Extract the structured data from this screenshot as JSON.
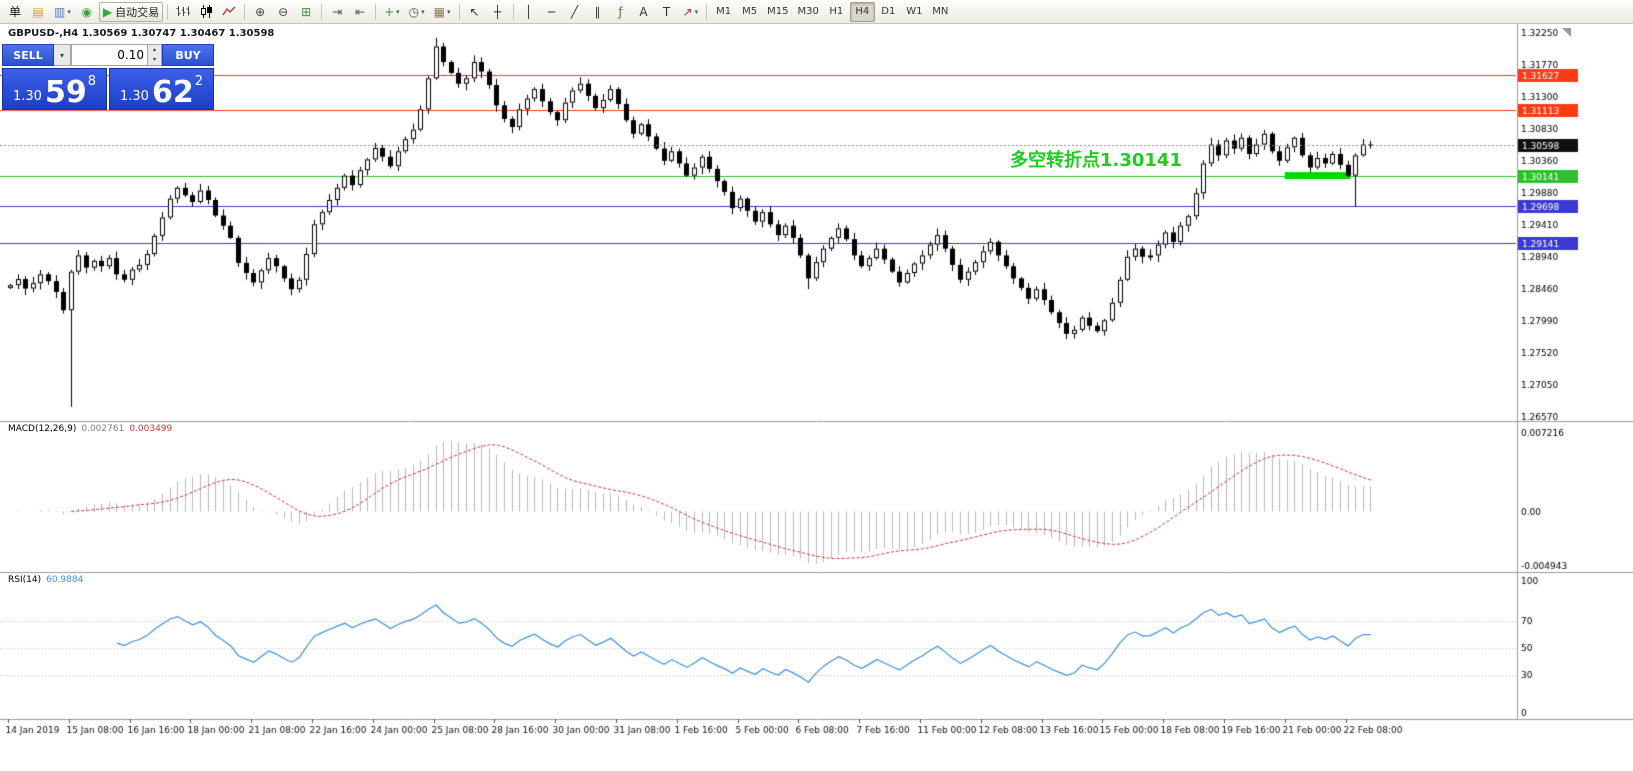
{
  "toolbar": {
    "items": [
      {
        "name": "order-menu-button",
        "glyph": "单",
        "color": "#111111"
      },
      {
        "name": "new-order-icon",
        "glyph": "▤",
        "color": "#d09a2e"
      },
      {
        "name": "chart-window-icon",
        "glyph": "▥",
        "color": "#4a7dc8",
        "caret": true
      },
      {
        "name": "market-watch-icon",
        "glyph": "◉",
        "color": "#3e9e3e"
      },
      {
        "name": "autotrading-button",
        "glyph": "▶",
        "color": "#2fae2f",
        "label": "自动交易",
        "wide": true
      },
      {
        "sep": true
      },
      {
        "name": "bar-chart-icon",
        "svg": "bars"
      },
      {
        "name": "candlestick-chart-icon",
        "svg": "candles"
      },
      {
        "name": "line-chart-icon",
        "svg": "line"
      },
      {
        "sep": true
      },
      {
        "name": "zoom-in-icon",
        "glyph": "⊕",
        "color": "#444444"
      },
      {
        "name": "zoom-out-icon",
        "glyph": "⊖",
        "color": "#444444"
      },
      {
        "name": "tile-windows-icon",
        "glyph": "⊞",
        "color": "#3e8e3e"
      },
      {
        "sep": true
      },
      {
        "name": "auto-scroll-icon",
        "glyph": "⇥",
        "color": "#555555"
      },
      {
        "name": "chart-shift-icon",
        "glyph": "⇤",
        "color": "#555555"
      },
      {
        "sep": true
      },
      {
        "name": "indicators-icon",
        "glyph": "+",
        "color": "#2d9e2d",
        "caret": true
      },
      {
        "name": "periods-icon",
        "glyph": "◷",
        "color": "#555555",
        "caret": true
      },
      {
        "name": "templates-icon",
        "glyph": "▦",
        "color": "#8a7a55",
        "caret": true
      },
      {
        "sep": true
      },
      {
        "name": "cursor-icon",
        "glyph": "↖",
        "color": "#333333"
      },
      {
        "name": "crosshair-icon",
        "glyph": "┼",
        "color": "#333333"
      },
      {
        "sep": true
      },
      {
        "name": "vertical-line-icon",
        "glyph": "│",
        "color": "#333333"
      },
      {
        "name": "horizontal-line-icon",
        "glyph": "─",
        "color": "#333333"
      },
      {
        "name": "trendline-icon",
        "glyph": "╱",
        "color": "#333333"
      },
      {
        "name": "channel-icon",
        "glyph": "∥",
        "color": "#333333"
      },
      {
        "name": "fibonacci-icon",
        "glyph": "ƒ",
        "color": "#557755"
      },
      {
        "name": "text-icon",
        "glyph": "A",
        "color": "#333333"
      },
      {
        "name": "text-label-icon",
        "glyph": "T",
        "color": "#333333"
      },
      {
        "name": "arrows-icon",
        "glyph": "↗",
        "color": "#aa3333",
        "caret": true
      },
      {
        "sep": true
      }
    ],
    "timeframes": {
      "items": [
        "M1",
        "M5",
        "M15",
        "M30",
        "H1",
        "H4",
        "D1",
        "W1",
        "MN"
      ],
      "active": "H4"
    }
  },
  "trade_panel": {
    "sell_label": "SELL",
    "buy_label": "BUY",
    "volume": "0.10",
    "caret_glyph": "▾",
    "spin_up": "▴",
    "spin_down": "▾",
    "sell_price": {
      "base": "1.30",
      "big": "59",
      "sup": "8"
    },
    "buy_price": {
      "base": "1.30",
      "big": "62",
      "sup": "2"
    }
  },
  "chart": {
    "symbol_info": "GBPUSD-,H4  1.30569 1.30747 1.30467 1.30598",
    "annotation": {
      "text": "多空转折点1.30141",
      "color": "#1ecc1e"
    }
  },
  "indicators": {
    "macd": {
      "name": "MACD(12,26,9)",
      "value1": "0.002761",
      "value2": "0.003499",
      "value1_color": "#808080",
      "value2_color": "#c23b3b"
    },
    "rsi": {
      "name": "RSI(14)",
      "value": "60.9884",
      "value_color": "#3f8fde"
    }
  },
  "chart_data": {
    "type": "candlestick",
    "symbol": "GBPUSD-",
    "timeframe": "H4",
    "first_open": 1.2848,
    "wick_base": 0.0002,
    "wick_var": 0.0008,
    "closes": [
      1.2852,
      1.2861,
      1.2847,
      1.2855,
      1.2868,
      1.2858,
      1.2842,
      1.2815,
      1.2872,
      1.2896,
      1.2878,
      1.2888,
      1.288,
      1.2892,
      1.2868,
      1.286,
      1.2875,
      1.2882,
      1.2898,
      1.2925,
      1.2952,
      1.298,
      1.2996,
      1.2985,
      1.2975,
      1.2992,
      1.2978,
      1.2955,
      1.294,
      1.2922,
      1.2885,
      1.287,
      1.2856,
      1.2874,
      1.2892,
      1.288,
      1.2862,
      1.2846,
      1.286,
      1.2898,
      1.2942,
      1.296,
      1.2978,
      1.2996,
      1.3014,
      1.3,
      1.3022,
      1.3038,
      1.3055,
      1.3042,
      1.3028,
      1.305,
      1.3068,
      1.3082,
      1.3112,
      1.3158,
      1.3205,
      1.3182,
      1.3166,
      1.315,
      1.3158,
      1.3182,
      1.3168,
      1.3148,
      1.3118,
      1.3098,
      1.3086,
      1.3112,
      1.3128,
      1.3142,
      1.3124,
      1.3108,
      1.3096,
      1.3122,
      1.314,
      1.315,
      1.3132,
      1.3114,
      1.3126,
      1.3142,
      1.312,
      1.3096,
      1.3076,
      1.309,
      1.3072,
      1.3054,
      1.3036,
      1.305,
      1.3032,
      1.3014,
      1.3026,
      1.3042,
      1.3024,
      1.3006,
      1.299,
      1.2966,
      1.298,
      1.2962,
      1.2946,
      1.296,
      1.2942,
      1.2926,
      1.294,
      1.2922,
      1.2896,
      1.2862,
      1.2886,
      1.2906,
      1.2922,
      1.2936,
      1.292,
      1.2896,
      1.288,
      1.2892,
      1.2906,
      1.289,
      1.2872,
      1.2856,
      1.287,
      1.2884,
      1.2896,
      1.2912,
      1.2926,
      1.2906,
      1.2882,
      1.286,
      1.2872,
      1.2886,
      1.2902,
      1.2916,
      1.2896,
      1.288,
      1.2862,
      1.2848,
      1.2832,
      1.2846,
      1.283,
      1.2812,
      1.2796,
      1.278,
      1.2786,
      1.2804,
      1.2792,
      1.2784,
      1.28,
      1.2826,
      1.286,
      1.2894,
      1.2906,
      1.2894,
      1.2896,
      1.2912,
      1.293,
      1.2916,
      1.294,
      1.2954,
      1.2988,
      1.3032,
      1.306,
      1.3044,
      1.3066,
      1.3054,
      1.307,
      1.3046,
      1.306,
      1.3076,
      1.305,
      1.3036,
      1.3056,
      1.307,
      1.3044,
      1.3026,
      1.304,
      1.3032,
      1.3046,
      1.303,
      1.3014,
      1.3044,
      1.306,
      1.30598
    ],
    "wick_overrides": {
      "8": {
        "low": 1.2672
      },
      "56": {
        "high": 1.3218
      },
      "105": {
        "low": 1.2846
      },
      "139": {
        "low": 1.2772
      },
      "177": {
        "low": 1.2968
      }
    },
    "y_range": [
      1.2657,
      1.3225
    ],
    "y_ticks": [
      "1.32250",
      "1.31770",
      "1.31300",
      "1.30830",
      "1.30360",
      "1.29880",
      "1.29410",
      "1.28940",
      "1.28460",
      "1.27990",
      "1.27520",
      "1.27050",
      "1.26570"
    ],
    "x_labels": [
      "14 Jan 2019",
      "15 Jan 08:00",
      "16 Jan 16:00",
      "18 Jan 00:00",
      "21 Jan 08:00",
      "22 Jan 16:00",
      "24 Jan 00:00",
      "25 Jan 08:00",
      "28 Jan 16:00",
      "30 Jan 00:00",
      "31 Jan 08:00",
      "1 Feb 16:00",
      "5 Feb 00:00",
      "6 Feb 08:00",
      "7 Feb 16:00",
      "11 Feb 00:00",
      "12 Feb 08:00",
      "13 Feb 16:00",
      "15 Feb 00:00",
      "18 Feb 08:00",
      "19 Feb 16:00",
      "21 Feb 00:00",
      "22 Feb 08:00"
    ],
    "label_every": 8,
    "levels": [
      {
        "price": 1.31627,
        "color": "#ff3b17",
        "tag": "1.31627"
      },
      {
        "price": 1.31113,
        "color": "#ff3b17",
        "tag": "1.31113"
      },
      {
        "price": 1.30141,
        "color": "#2fbf2f",
        "tag": "1.30141"
      },
      {
        "price": 1.29698,
        "color": "#3a3ad0",
        "tag": "1.29698"
      },
      {
        "price": 1.29141,
        "color": "#3a3ad0",
        "tag": "1.29141"
      }
    ],
    "current_price": {
      "value": 1.30598,
      "tag": "1.30598",
      "tag_bg": "#111111"
    },
    "highlight_band": {
      "from": 168,
      "to": 176,
      "price": 1.30141,
      "color": "#00d800",
      "thickness": 7
    },
    "macd": {
      "fast": 12,
      "slow": 26,
      "signal": 9,
      "range": [
        -0.004943,
        0.007216
      ],
      "y_ticks": [
        "0.007216",
        "0.00",
        "-0.004943"
      ],
      "histogram_color": "#b9b9b9",
      "signal_color": "#d83131"
    },
    "rsi": {
      "period": 14,
      "range": [
        0,
        100
      ],
      "levels": [
        70,
        50,
        30
      ],
      "y_ticks": [
        "100",
        "70",
        "50",
        "30",
        "0"
      ],
      "color": "#3f8fde"
    }
  }
}
